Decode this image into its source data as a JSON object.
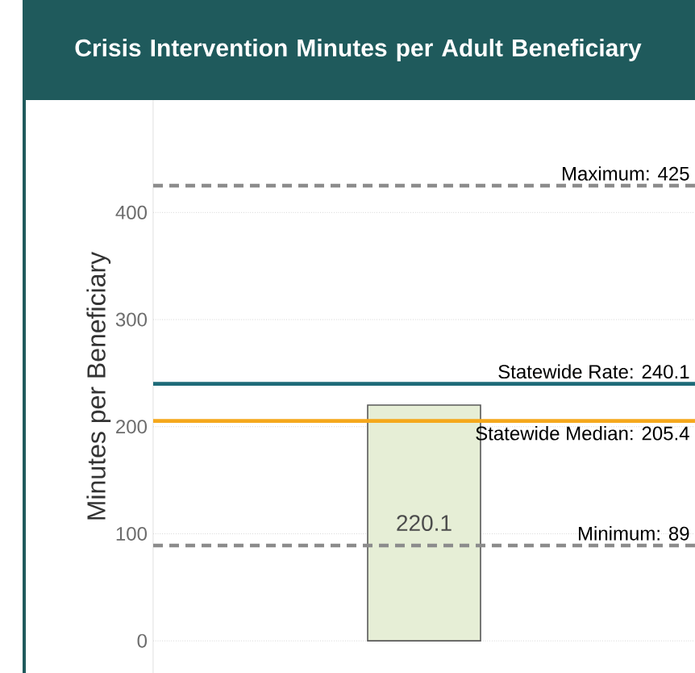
{
  "chart_data": {
    "type": "bar",
    "title": "Crisis Intervention Minutes per Adult Beneficiary",
    "ylabel": "Minutes per Beneficiary",
    "categories": [
      null
    ],
    "values": [
      220.1
    ],
    "color": "#e6eed6",
    "data_labels": true,
    "ylim": [
      -30,
      505
    ],
    "yticks": [
      0,
      100,
      200,
      300,
      400
    ],
    "grid": "y",
    "ref_lines": [
      {
        "axis": "y",
        "value": 425,
        "label": "Maximum: 425",
        "color": "#8c8c8c",
        "line_style": "dashed"
      },
      {
        "axis": "y",
        "value": 240.1,
        "label": "Statewide Rate: 240.1",
        "color": "#1d6a78",
        "line_style": "solid"
      },
      {
        "axis": "y",
        "value": 205.4,
        "label": "Statewide Median: 205.4",
        "color": "#f5a81c",
        "line_style": "solid"
      },
      {
        "axis": "y",
        "value": 89,
        "label": "Minimum: 89",
        "color": "#8c8c8c",
        "line_style": "dashed"
      }
    ]
  }
}
